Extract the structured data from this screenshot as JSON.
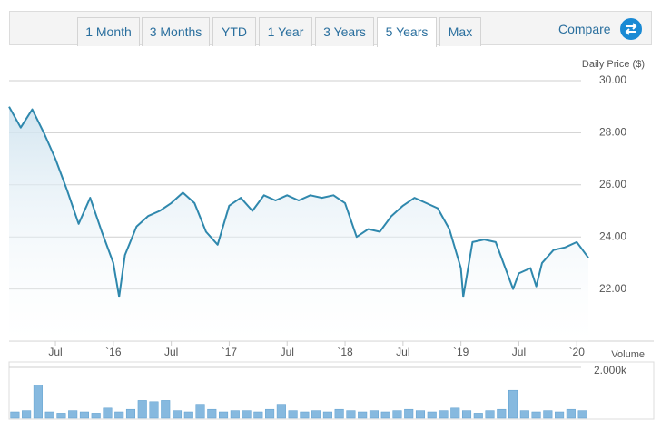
{
  "toolbar": {
    "buttons": [
      "1 Month",
      "3 Months",
      "YTD",
      "1 Year",
      "3 Years",
      "5 Years",
      "Max"
    ],
    "active_index": 5,
    "compare": "Compare"
  },
  "chart_data": [
    {
      "type": "line",
      "ylabel": "Daily Price ($)",
      "color": "#2f88ad",
      "grid": true,
      "xlim": [
        2015.1,
        2020.1
      ],
      "ylim": [
        20,
        30
      ],
      "xticks": [
        {
          "value": 2015.5,
          "label": "Jul"
        },
        {
          "value": 2016.0,
          "label": "`16"
        },
        {
          "value": 2016.5,
          "label": "Jul"
        },
        {
          "value": 2017.0,
          "label": "`17"
        },
        {
          "value": 2017.5,
          "label": "Jul"
        },
        {
          "value": 2018.0,
          "label": "`18"
        },
        {
          "value": 2018.5,
          "label": "Jul"
        },
        {
          "value": 2019.0,
          "label": "`19"
        },
        {
          "value": 2019.5,
          "label": "Jul"
        },
        {
          "value": 2020.0,
          "label": "`20"
        }
      ],
      "yticks": [
        {
          "value": 22,
          "label": "22.00"
        },
        {
          "value": 24,
          "label": "24.00"
        },
        {
          "value": 26,
          "label": "26.00"
        },
        {
          "value": 28,
          "label": "28.00"
        },
        {
          "value": 30,
          "label": "30.00"
        }
      ],
      "x": [
        2015.1,
        2015.2,
        2015.3,
        2015.4,
        2015.5,
        2015.6,
        2015.7,
        2015.8,
        2015.9,
        2016.0,
        2016.05,
        2016.1,
        2016.2,
        2016.3,
        2016.4,
        2016.5,
        2016.6,
        2016.7,
        2016.8,
        2016.9,
        2017.0,
        2017.1,
        2017.2,
        2017.3,
        2017.4,
        2017.5,
        2017.6,
        2017.7,
        2017.8,
        2017.9,
        2018.0,
        2018.1,
        2018.2,
        2018.3,
        2018.4,
        2018.5,
        2018.6,
        2018.7,
        2018.8,
        2018.9,
        2019.0,
        2019.02,
        2019.1,
        2019.2,
        2019.3,
        2019.4,
        2019.45,
        2019.5,
        2019.6,
        2019.65,
        2019.7,
        2019.8,
        2019.9,
        2020.0,
        2020.1
      ],
      "values": [
        29.0,
        28.2,
        28.9,
        28.0,
        27.0,
        25.8,
        24.5,
        25.5,
        24.2,
        23.0,
        21.7,
        23.3,
        24.4,
        24.8,
        25.0,
        25.3,
        25.7,
        25.3,
        24.2,
        23.7,
        25.2,
        25.5,
        25.0,
        25.6,
        25.4,
        25.6,
        25.4,
        25.6,
        25.5,
        25.6,
        25.3,
        24.0,
        24.3,
        24.2,
        24.8,
        25.2,
        25.5,
        25.3,
        25.1,
        24.3,
        22.8,
        21.7,
        23.8,
        23.9,
        23.8,
        22.6,
        22.0,
        22.6,
        22.8,
        22.1,
        23.0,
        23.5,
        23.6,
        23.8,
        23.2
      ]
    },
    {
      "type": "bar",
      "ylabel": "Volume",
      "color": "#86b9df",
      "xlim": [
        2015.1,
        2020.1
      ],
      "ylim": [
        0,
        2000
      ],
      "yticks": [
        {
          "value": 2000,
          "label": "2.000k"
        }
      ],
      "x": [
        2015.15,
        2015.25,
        2015.35,
        2015.45,
        2015.55,
        2015.65,
        2015.75,
        2015.85,
        2015.95,
        2016.05,
        2016.15,
        2016.25,
        2016.35,
        2016.45,
        2016.55,
        2016.65,
        2016.75,
        2016.85,
        2016.95,
        2017.05,
        2017.15,
        2017.25,
        2017.35,
        2017.45,
        2017.55,
        2017.65,
        2017.75,
        2017.85,
        2017.95,
        2018.05,
        2018.15,
        2018.25,
        2018.35,
        2018.45,
        2018.55,
        2018.65,
        2018.75,
        2018.85,
        2018.95,
        2019.05,
        2019.15,
        2019.25,
        2019.35,
        2019.45,
        2019.55,
        2019.65,
        2019.75,
        2019.85,
        2019.95,
        2020.05
      ],
      "values": [
        250,
        300,
        1300,
        250,
        200,
        300,
        250,
        200,
        400,
        250,
        350,
        700,
        650,
        700,
        300,
        250,
        550,
        350,
        250,
        300,
        300,
        250,
        350,
        550,
        300,
        250,
        300,
        250,
        350,
        300,
        250,
        300,
        250,
        300,
        350,
        300,
        250,
        300,
        400,
        300,
        200,
        300,
        350,
        1100,
        300,
        250,
        300,
        250,
        350,
        300
      ]
    }
  ]
}
